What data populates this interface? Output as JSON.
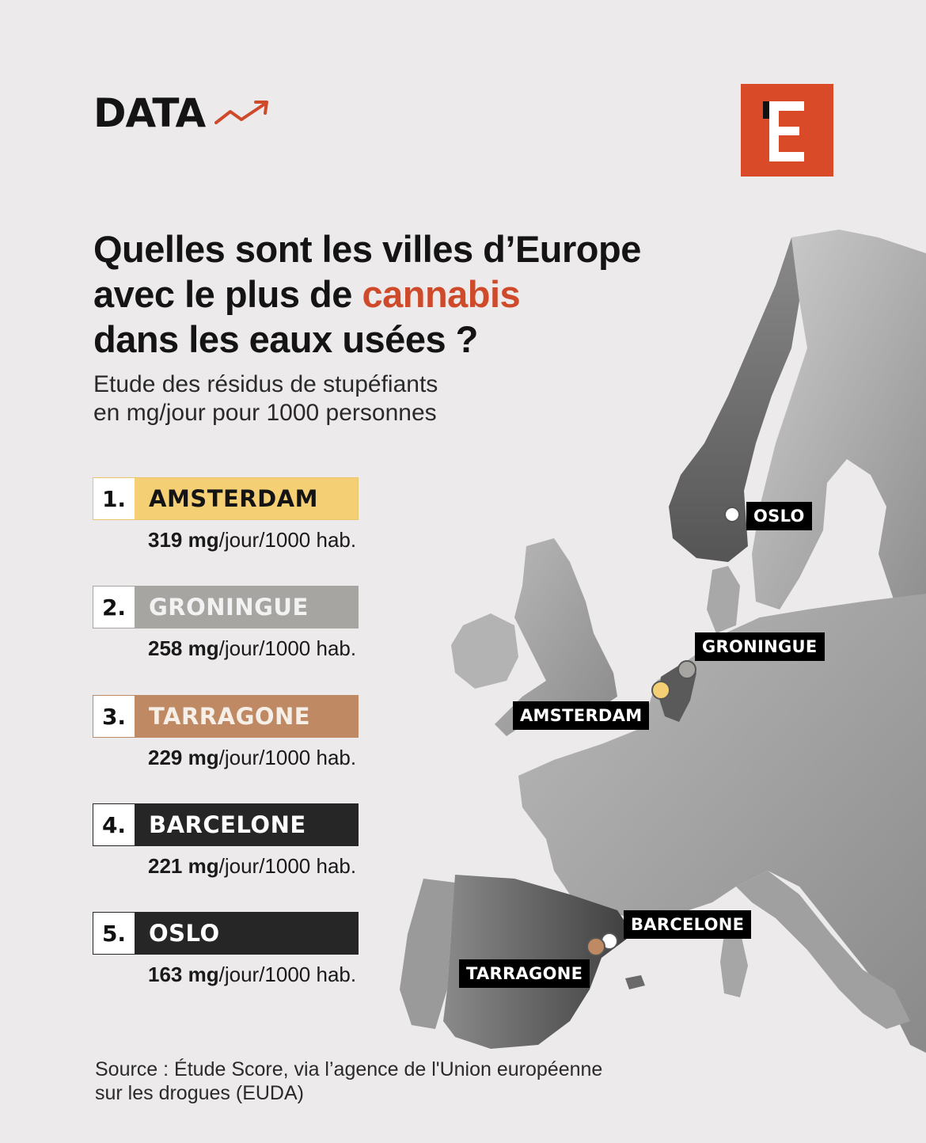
{
  "header": {
    "brand": "DATA"
  },
  "title": {
    "line1": "Quelles sont les villes d’Europe",
    "line2_before": "avec le plus de ",
    "line2_accent": "cannabis",
    "line3": "dans les eaux usées ?"
  },
  "subtitle": {
    "line1": "Etude des résidus de stupéfiants",
    "line2": "en mg/jour pour 1000 personnes"
  },
  "colors": {
    "accent": "#cf4a2a",
    "logo": "#d84a28",
    "amsterdam": "#f5cf74",
    "groningue": "#a7a5a2",
    "tarragone": "#bf8a63",
    "barcelone": "#262626",
    "oslo": "#262626"
  },
  "ranking": [
    {
      "rank": "1.",
      "city": "AMSTERDAM",
      "value": "319",
      "unit": "mg",
      "suffix": "/jour/1000 hab."
    },
    {
      "rank": "2.",
      "city": "GRONINGUE",
      "value": "258",
      "unit": "mg",
      "suffix": "/jour/1000 hab."
    },
    {
      "rank": "3.",
      "city": "TARRAGONE",
      "value": "229",
      "unit": "mg",
      "suffix": "/jour/1000 hab."
    },
    {
      "rank": "4.",
      "city": "BARCELONE",
      "value": "221",
      "unit": "mg",
      "suffix": "/jour/1000 hab."
    },
    {
      "rank": "5.",
      "city": "OSLO",
      "value": "163",
      "unit": "mg",
      "suffix": "/jour/1000 hab."
    }
  ],
  "map_labels": {
    "oslo": "OSLO",
    "groningue": "GRONINGUE",
    "amsterdam": "AMSTERDAM",
    "barcelone": "BARCELONE",
    "tarragone": "TARRAGONE"
  },
  "source": {
    "line1": "Source : Étude Score, via l’agence de l'Union européenne",
    "line2": "sur les drogues (EUDA)"
  }
}
